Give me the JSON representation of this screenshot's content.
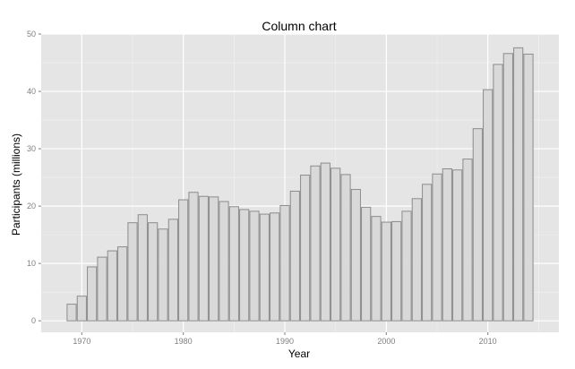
{
  "chart_data": {
    "type": "bar",
    "title": "Column chart",
    "xlabel": "Year",
    "ylabel": "Participants (millions)",
    "xlim": [
      1966,
      2017
    ],
    "ylim": [
      -2,
      50
    ],
    "x_ticks": [
      1970,
      1980,
      1990,
      2000,
      2010
    ],
    "y_ticks": [
      0,
      10,
      20,
      30,
      40,
      50
    ],
    "grid": true,
    "categories": [
      1969,
      1970,
      1971,
      1972,
      1973,
      1974,
      1975,
      1976,
      1977,
      1978,
      1979,
      1980,
      1981,
      1982,
      1983,
      1984,
      1985,
      1986,
      1987,
      1988,
      1989,
      1990,
      1991,
      1992,
      1993,
      1994,
      1995,
      1996,
      1997,
      1998,
      1999,
      2000,
      2001,
      2002,
      2003,
      2004,
      2005,
      2006,
      2007,
      2008,
      2009,
      2010,
      2011,
      2012,
      2013,
      2014
    ],
    "values": [
      2.9,
      4.3,
      9.4,
      11.1,
      12.2,
      12.9,
      17.1,
      18.5,
      17.1,
      16.0,
      17.7,
      21.1,
      22.4,
      21.7,
      21.6,
      20.8,
      19.9,
      19.4,
      19.1,
      18.6,
      18.8,
      20.1,
      22.6,
      25.4,
      27.0,
      27.5,
      26.6,
      25.5,
      22.9,
      19.8,
      18.2,
      17.2,
      17.3,
      19.1,
      21.3,
      23.8,
      25.6,
      26.5,
      26.3,
      28.2,
      33.5,
      40.3,
      44.7,
      46.6,
      47.6,
      46.5
    ]
  }
}
